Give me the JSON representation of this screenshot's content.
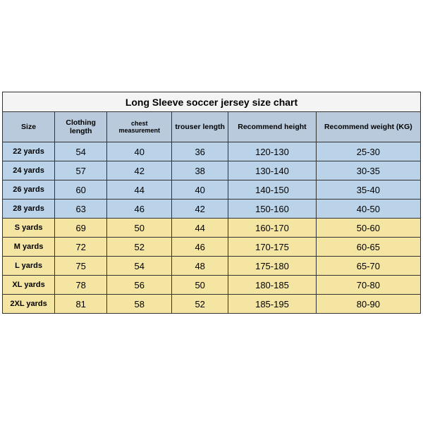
{
  "chart": {
    "title": "Long Sleeve soccer jersey size chart",
    "columns": [
      {
        "label": "Size",
        "small": false
      },
      {
        "label": "Clothing length",
        "small": false
      },
      {
        "label": "chest measurement",
        "small": true
      },
      {
        "label": "trouser length",
        "small": false
      },
      {
        "label": "Recommend height",
        "small": false
      },
      {
        "label": "Recommend weight (KG)",
        "small": false
      }
    ],
    "header_bg": "#b8cadb",
    "youth_bg": "#bbd3e9",
    "adult_bg": "#f5e5a3",
    "rows": [
      {
        "band": "youth",
        "cells": [
          "22 yards",
          "54",
          "40",
          "36",
          "120-130",
          "25-30"
        ]
      },
      {
        "band": "youth",
        "cells": [
          "24 yards",
          "57",
          "42",
          "38",
          "130-140",
          "30-35"
        ]
      },
      {
        "band": "youth",
        "cells": [
          "26 yards",
          "60",
          "44",
          "40",
          "140-150",
          "35-40"
        ]
      },
      {
        "band": "youth",
        "cells": [
          "28 yards",
          "63",
          "46",
          "42",
          "150-160",
          "40-50"
        ]
      },
      {
        "band": "adult",
        "cells": [
          "S yards",
          "69",
          "50",
          "44",
          "160-170",
          "50-60"
        ]
      },
      {
        "band": "adult",
        "cells": [
          "M yards",
          "72",
          "52",
          "46",
          "170-175",
          "60-65"
        ]
      },
      {
        "band": "adult",
        "cells": [
          "L yards",
          "75",
          "54",
          "48",
          "175-180",
          "65-70"
        ]
      },
      {
        "band": "adult",
        "cells": [
          "XL yards",
          "78",
          "56",
          "50",
          "180-185",
          "70-80"
        ]
      },
      {
        "band": "adult",
        "cells": [
          "2XL yards",
          "81",
          "58",
          "52",
          "185-195",
          "80-90"
        ]
      }
    ]
  }
}
